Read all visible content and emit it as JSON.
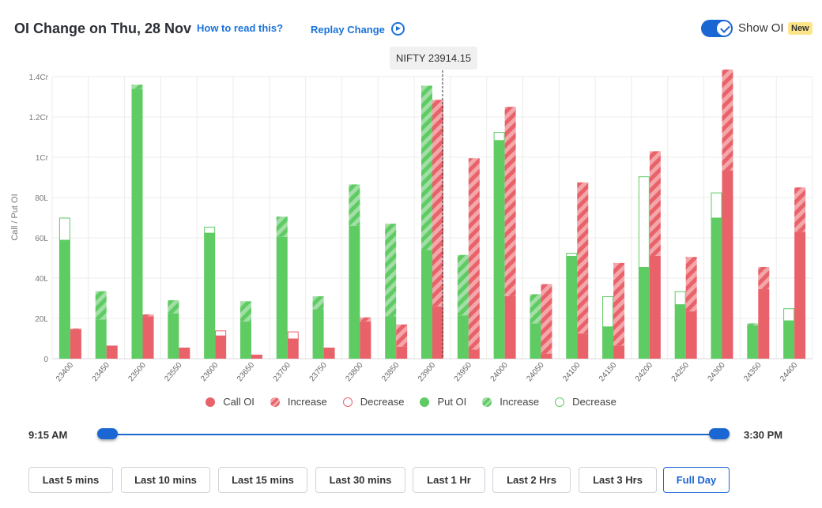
{
  "header": {
    "title": "OI Change on Thu, 28 Nov",
    "how_to_read": "How to read this?",
    "replay": "Replay Change",
    "show_oi": "Show OI",
    "new_badge": "New"
  },
  "spot_label": "NIFTY 23914.15",
  "legend": {
    "call_oi": "Call OI",
    "call_increase": "Increase",
    "call_decrease": "Decrease",
    "put_oi": "Put OI",
    "put_increase": "Increase",
    "put_decrease": "Decrease"
  },
  "colors": {
    "put": "#5ecb63",
    "put_increase": "#a2dea6",
    "call": "#e9626a",
    "call_increase": "#f3a7ab",
    "accent": "#1a66d2"
  },
  "chart_data": {
    "type": "bar",
    "ylabel": "Call / Put OI",
    "unit": "lakh",
    "ylim": [
      0,
      140
    ],
    "yticks": [
      0,
      20,
      40,
      60,
      80,
      100,
      120,
      140
    ],
    "ytick_labels": [
      "0",
      "20L",
      "40L",
      "60L",
      "80L",
      "1Cr",
      "1.2Cr",
      "1.4Cr"
    ],
    "spot_value": 23914.15,
    "categories": [
      "23400",
      "23450",
      "23500",
      "23550",
      "23600",
      "23650",
      "23700",
      "23750",
      "23800",
      "23850",
      "23900",
      "23950",
      "24000",
      "24050",
      "24100",
      "24150",
      "24200",
      "24250",
      "24300",
      "24350",
      "24400"
    ],
    "series": [
      {
        "name": "Put OI",
        "side": "put",
        "base": [
          59,
          19.5,
          134,
          22.5,
          62.5,
          18.5,
          60.5,
          24.5,
          66,
          21,
          54,
          21.5,
          108.5,
          17.5,
          51,
          16,
          45.5,
          27,
          70,
          16.5,
          19
        ],
        "change": [
          11,
          14,
          2,
          6.5,
          3,
          10,
          10,
          6.5,
          20.5,
          46,
          81.5,
          30,
          4,
          14.5,
          1.5,
          15,
          45,
          6.5,
          12.5,
          1,
          6
        ],
        "change_type": [
          "decrease",
          "increase",
          "increase",
          "increase",
          "decrease",
          "increase",
          "increase",
          "increase",
          "increase",
          "increase",
          "increase",
          "increase",
          "decrease",
          "increase",
          "decrease",
          "decrease",
          "decrease",
          "decrease",
          "decrease",
          "increase",
          "decrease"
        ]
      },
      {
        "name": "Call OI",
        "side": "call",
        "base": [
          14.5,
          6.5,
          21,
          5.5,
          11.5,
          2,
          10,
          5.5,
          18.5,
          6,
          26,
          4.5,
          31,
          2.5,
          12.5,
          6.5,
          51,
          23.5,
          93.5,
          34.5,
          63
        ],
        "change": [
          0.5,
          0,
          1,
          0,
          2.5,
          0,
          3.5,
          0,
          2,
          11,
          102.5,
          95,
          94,
          34.5,
          75,
          41,
          52,
          27,
          50,
          11,
          22
        ],
        "change_type": [
          "increase",
          "increase",
          "increase",
          "increase",
          "decrease",
          "increase",
          "decrease",
          "increase",
          "increase",
          "increase",
          "increase",
          "increase",
          "increase",
          "increase",
          "increase",
          "increase",
          "increase",
          "increase",
          "increase",
          "increase",
          "increase"
        ]
      }
    ]
  },
  "slider": {
    "start": "9:15 AM",
    "end": "3:30 PM"
  },
  "ranges": [
    "Last 5 mins",
    "Last 10 mins",
    "Last 15 mins",
    "Last 30 mins",
    "Last 1 Hr",
    "Last 2 Hrs",
    "Last 3 Hrs",
    "Full Day"
  ],
  "active_range": "Full Day"
}
